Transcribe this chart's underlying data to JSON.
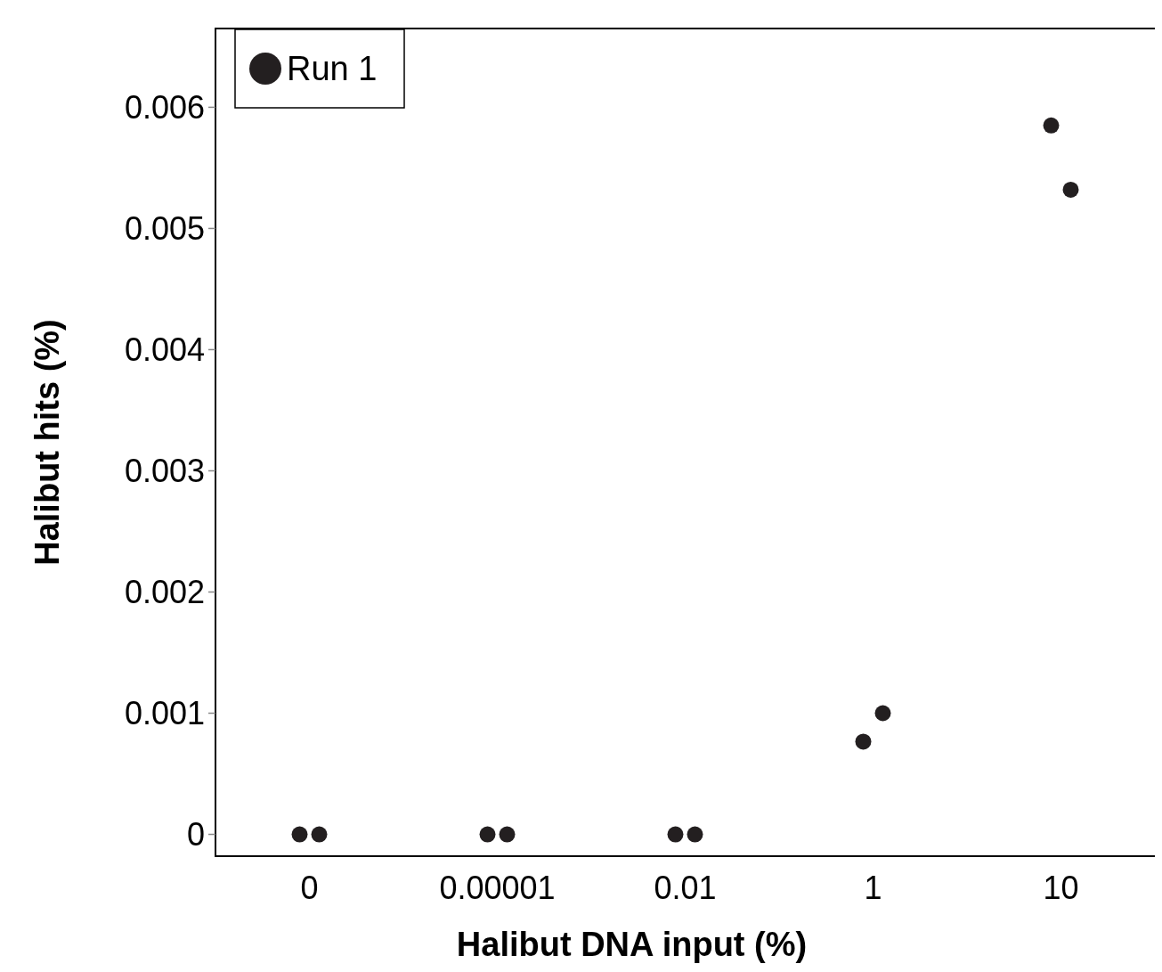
{
  "chart_data": {
    "type": "scatter",
    "xlabel": "Halibut DNA input (%)",
    "ylabel": "Halibut hits (%)",
    "categories": [
      "0",
      "0.00001",
      "0.01",
      "1",
      "10"
    ],
    "series": [
      {
        "name": "Run 1",
        "color": "#231f20",
        "x": [
          "0",
          "0",
          "0.00001",
          "0.00001",
          "0.01",
          "0.01",
          "1",
          "1",
          "10",
          "10"
        ],
        "values": [
          0,
          0,
          0,
          0,
          0,
          0,
          0.000765,
          0.001,
          0.00585,
          0.00532
        ]
      }
    ],
    "ylim": [
      -0.00018,
      0.00665
    ],
    "yticks": [
      0,
      0.001,
      0.002,
      0.003,
      0.004,
      0.005,
      0.006
    ],
    "marker": "circle",
    "legend": "top left",
    "grid": false
  }
}
